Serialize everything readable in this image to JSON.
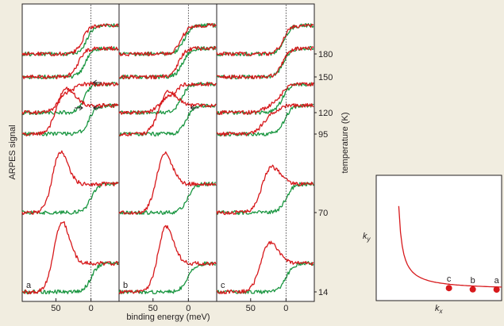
{
  "colors": {
    "red": "#d7191c",
    "green": "#1a9641",
    "background": "#f1ede0"
  },
  "chart_data": [
    {
      "type": "line",
      "title": "",
      "xlabel": "binding energy (meV)",
      "ylabel": "ARPES signal",
      "y2label": "temperature (K)",
      "x_reversed": true,
      "xlim": [
        98,
        -40
      ],
      "x_ticks": [
        50,
        0
      ],
      "x_tick_labels": [
        "50",
        "0"
      ],
      "temperature_labels": [
        "180",
        "150",
        "120",
        "95",
        "70",
        "14"
      ],
      "grid": false,
      "legend": "none",
      "panels": [
        {
          "label": "a",
          "temperatures": [
            180,
            150,
            120,
            95,
            70,
            14
          ],
          "red": [
            {
              "T": 180,
              "edge": 12,
              "peak": 0,
              "pw": 10
            },
            {
              "T": 150,
              "edge": 18,
              "peak": 0,
              "pw": 10
            },
            {
              "T": 120,
              "edge": 22,
              "peak": 25,
              "pw": 12
            },
            {
              "T": 95,
              "edge": 25,
              "peak": 60,
              "pw": 12
            },
            {
              "T": 70,
              "edge": 32,
              "peak": 82,
              "pw": 11
            },
            {
              "T": 14,
              "edge": 30,
              "peak": 95,
              "pw": 11
            }
          ],
          "green": [
            {
              "T": 180,
              "edge": 6
            },
            {
              "T": 150,
              "edge": 8
            },
            {
              "T": 120,
              "edge": 10
            },
            {
              "T": 95,
              "edge": 3
            },
            {
              "T": 70,
              "edge": 0
            },
            {
              "T": 14,
              "edge": 0
            }
          ],
          "arrows": [
            "150",
            "120"
          ]
        },
        {
          "label": "b",
          "temperatures": [
            180,
            150,
            120,
            95,
            70,
            14
          ],
          "red": [
            {
              "T": 180,
              "edge": 10,
              "peak": 0,
              "pw": 10
            },
            {
              "T": 150,
              "edge": 14,
              "peak": 0,
              "pw": 10
            },
            {
              "T": 120,
              "edge": 16,
              "peak": 20,
              "pw": 12
            },
            {
              "T": 95,
              "edge": 18,
              "peak": 55,
              "pw": 12
            },
            {
              "T": 70,
              "edge": 22,
              "peak": 80,
              "pw": 11
            },
            {
              "T": 14,
              "edge": 20,
              "peak": 88,
              "pw": 11
            }
          ],
          "green": [
            {
              "T": 180,
              "edge": 6
            },
            {
              "T": 150,
              "edge": 8
            },
            {
              "T": 120,
              "edge": 10
            },
            {
              "T": 95,
              "edge": 3
            },
            {
              "T": 70,
              "edge": 1
            },
            {
              "T": 14,
              "edge": 1
            }
          ],
          "arrows": [
            "120"
          ]
        },
        {
          "label": "c",
          "temperatures": [
            180,
            150,
            120,
            95,
            70,
            14
          ],
          "red": [
            {
              "T": 180,
              "edge": 4,
              "peak": 0,
              "pw": 10
            },
            {
              "T": 150,
              "edge": 5,
              "peak": 0,
              "pw": 10
            },
            {
              "T": 120,
              "edge": 6,
              "peak": 10,
              "pw": 12
            },
            {
              "T": 95,
              "edge": 8,
              "peak": 25,
              "pw": 12
            },
            {
              "T": 70,
              "edge": 10,
              "peak": 60,
              "pw": 12
            },
            {
              "T": 14,
              "edge": 12,
              "peak": 65,
              "pw": 12
            }
          ],
          "green": [
            {
              "T": 180,
              "edge": 3
            },
            {
              "T": 150,
              "edge": 4
            },
            {
              "T": 120,
              "edge": 5
            },
            {
              "T": 95,
              "edge": 2
            },
            {
              "T": 70,
              "edge": 0
            },
            {
              "T": 14,
              "edge": 0
            }
          ],
          "arrows": []
        }
      ]
    },
    {
      "type": "scatter",
      "title": "",
      "xlabel": "k",
      "xlabel_subscript": "x",
      "ylabel": "k",
      "ylabel_subscript": "y",
      "curve_color": "#d7191c",
      "points": [
        {
          "label": "c",
          "kx": 0.58,
          "ky": 0.1
        },
        {
          "label": "b",
          "kx": 0.77,
          "ky": 0.09
        },
        {
          "label": "a",
          "kx": 0.96,
          "ky": 0.088
        }
      ]
    }
  ]
}
